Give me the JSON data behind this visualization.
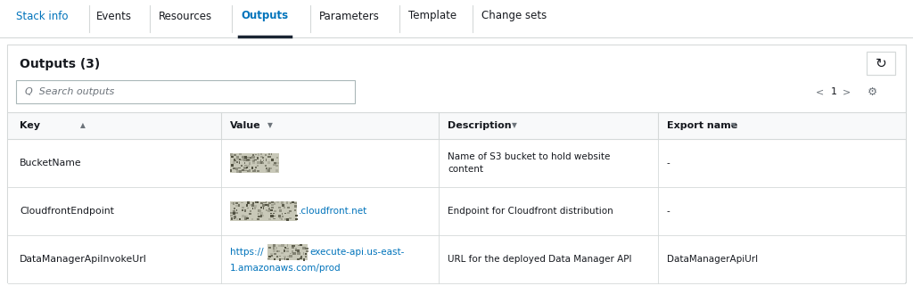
{
  "bg_color": "#ffffff",
  "tab_bar_bg": "#ffffff",
  "panel_bg": "#f8f9fa",
  "inner_bg": "#ffffff",
  "tabs": [
    "Stack info",
    "Events",
    "Resources",
    "Outputs",
    "Parameters",
    "Template",
    "Change sets"
  ],
  "active_tab": "Outputs",
  "blue_tabs": [
    "Stack info",
    "Outputs"
  ],
  "tab_blue_color": "#0073bb",
  "tab_dark_color": "#16191f",
  "active_underline_color": "#1a2433",
  "title": "Outputs (3)",
  "search_placeholder": "Q  Search outputs",
  "columns": [
    "Key",
    "Value",
    "Description",
    "Export name"
  ],
  "header_color": "#16191f",
  "header_bg": "#f8f9fa",
  "divider_color": "#d5d9d9",
  "rows": [
    {
      "key": "BucketName",
      "value_is_link": false,
      "description_line1": "Name of S3 bucket to hold website",
      "description_line2": "content",
      "export_name": "-"
    },
    {
      "key": "CloudfrontEndpoint",
      "value_is_link": true,
      "link_suffix": ".cloudfront.net",
      "description_line1": "Endpoint for Cloudfront distribution",
      "description_line2": "",
      "export_name": "-"
    },
    {
      "key": "DataManagerApiInvokeUrl",
      "value_is_link": true,
      "link_line1": "https://█████execute-api.us-east-",
      "link_line2": "1.amazonaws.com/prod",
      "description_line1": "URL for the deployed Data Manager API",
      "description_line2": "",
      "export_name": "DataManagerApiUrl"
    }
  ],
  "link_color": "#0073bb",
  "text_color": "#16191f",
  "muted_color": "#6c737a",
  "border_color": "#d5d9d9",
  "search_border": "#aab7b8",
  "tab_sep_color": "#d5d9d9",
  "redact_base": "#c8c8b8",
  "redact_dark": "#909080"
}
